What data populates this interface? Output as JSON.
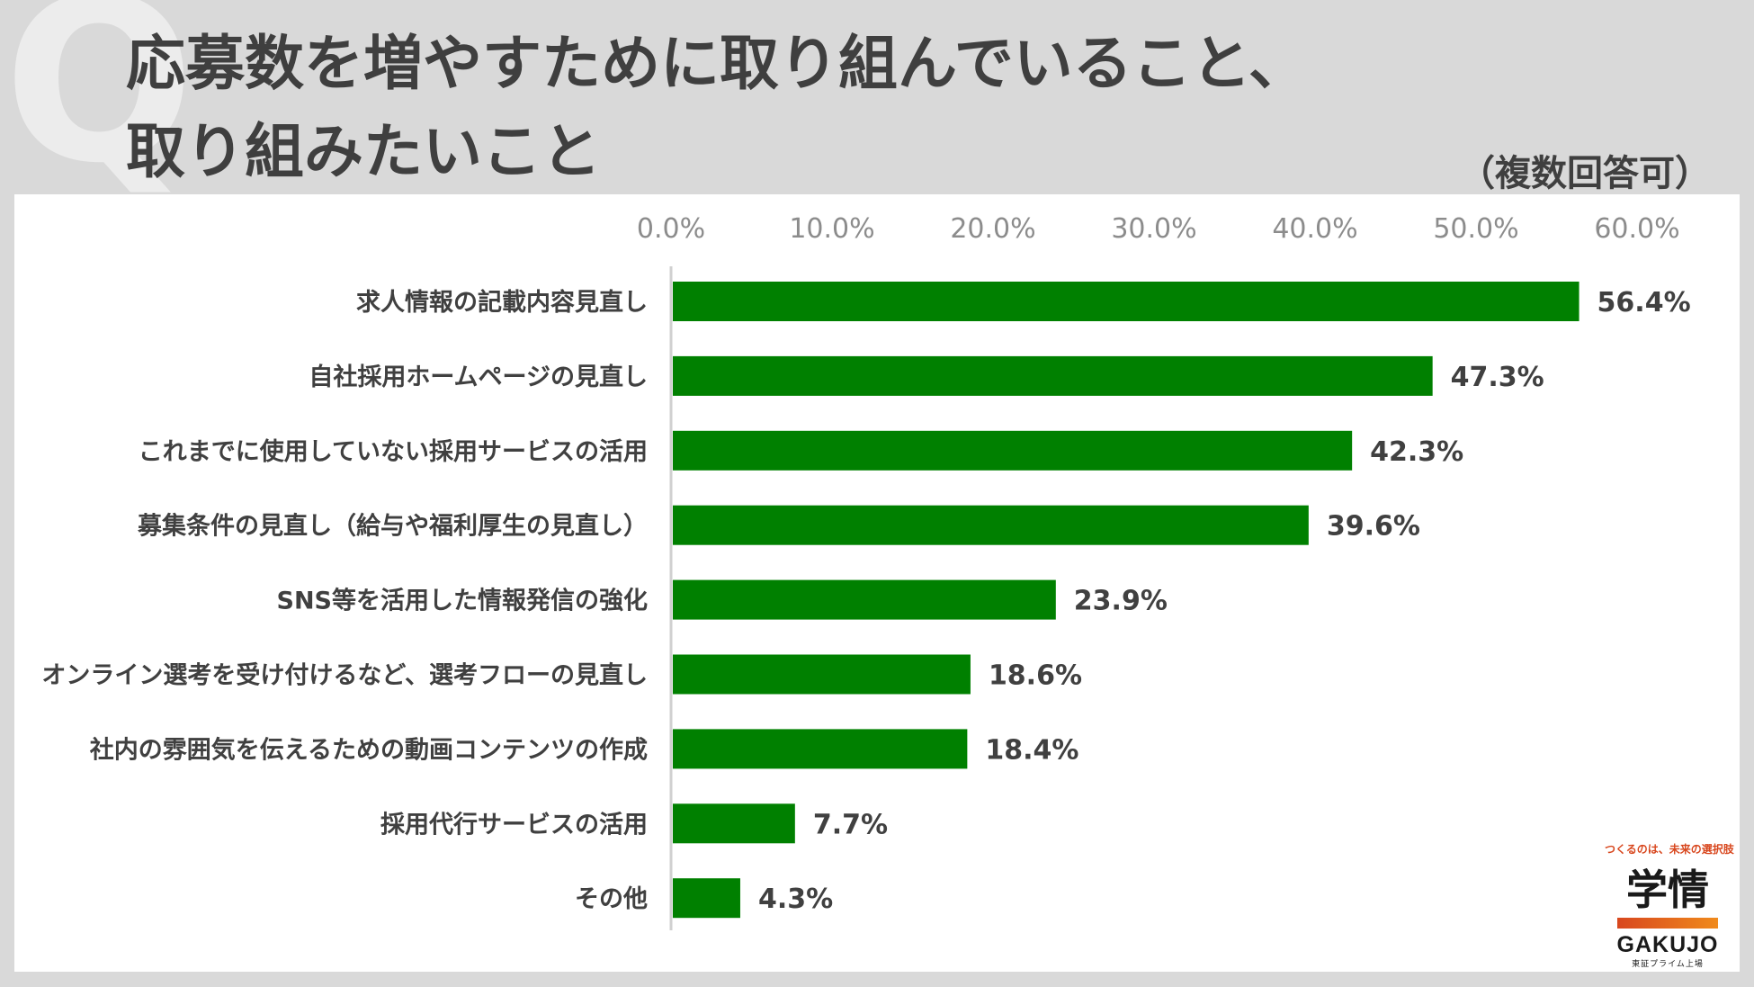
{
  "header": {
    "q_mark": "Q",
    "title": "応募数を増やすために取り組んでいること、\n取り組みたいこと",
    "note": "（複数回答可）"
  },
  "logo": {
    "tagline": "つくるのは、未来の選択肢",
    "mark": "学情",
    "name": "GAKUJO",
    "subtitle": "東証プライム上場"
  },
  "chart_data": {
    "type": "bar",
    "orientation": "horizontal",
    "categories": [
      "求人情報の記載内容見直し",
      "自社採用ホームページの見直し",
      "これまでに使用していない採用サービスの活用",
      "募集条件の見直し（給与や福利厚生の見直し）",
      "SNS等を活用した情報発信の強化",
      "オンライン選考を受け付けるなど、選考フローの見直し",
      "社内の雰囲気を伝えるための動画コンテンツの作成",
      "採用代行サービスの活用",
      "その他"
    ],
    "values": [
      56.4,
      47.3,
      42.3,
      39.6,
      23.9,
      18.6,
      18.4,
      7.7,
      4.3
    ],
    "value_labels": [
      "56.4%",
      "47.3%",
      "42.3%",
      "39.6%",
      "23.9%",
      "18.6%",
      "18.4%",
      "7.7%",
      "4.3%"
    ],
    "xlim": [
      0,
      60
    ],
    "x_ticks": [
      "0.0%",
      "10.0%",
      "20.0%",
      "30.0%",
      "40.0%",
      "50.0%",
      "60.0%"
    ],
    "axis_position": "top",
    "grid": false,
    "legend": "none",
    "bar_color": "#008000",
    "text_color": "#404040",
    "tick_color": "#8c8c8c"
  }
}
